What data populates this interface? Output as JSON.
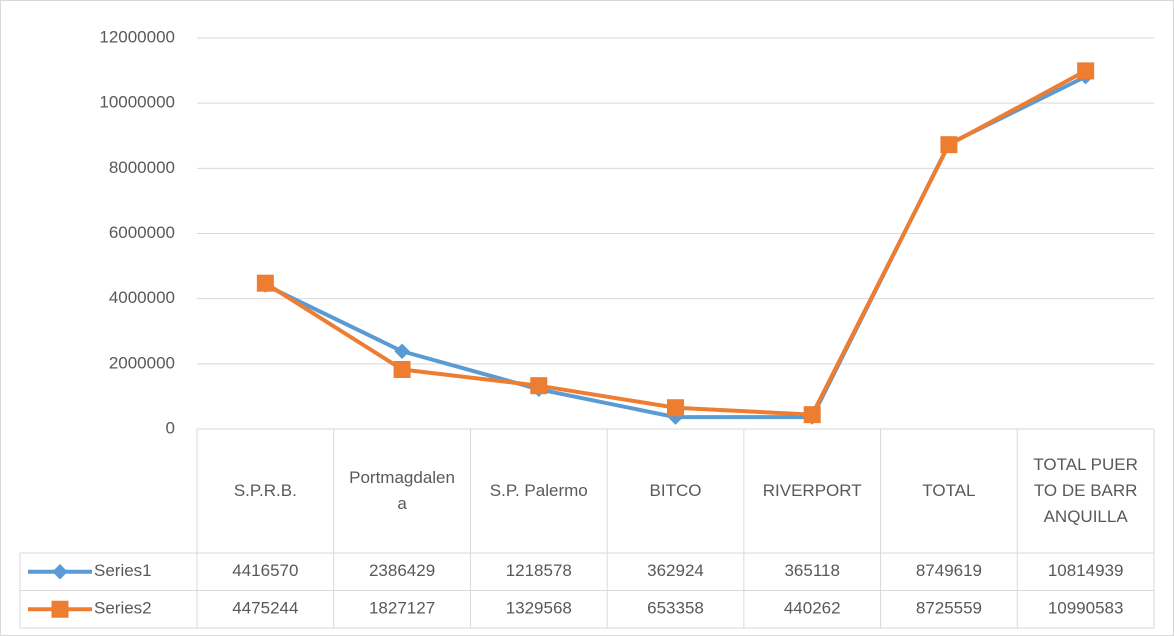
{
  "chart_data": {
    "type": "line",
    "categories": [
      "S.P.R.B.",
      "Portmagdalena",
      "S.P. Palermo",
      "BITCO",
      "RIVERPORT",
      "TOTAL",
      "TOTAL PUERTO DE BARRANQUILLA"
    ],
    "series": [
      {
        "name": "Series1",
        "color": "#5b9bd5",
        "marker": "diamond",
        "values": [
          4416570,
          2386429,
          1218578,
          362924,
          365118,
          8749619,
          10814939
        ]
      },
      {
        "name": "Series2",
        "color": "#ed7d31",
        "marker": "square",
        "values": [
          4475244,
          1827127,
          1329568,
          653358,
          440262,
          8725559,
          10990583
        ]
      }
    ],
    "ylim": [
      0,
      12000000
    ],
    "yticks": [
      0,
      2000000,
      4000000,
      6000000,
      8000000,
      10000000,
      12000000
    ],
    "grid": true,
    "data_table": true
  }
}
